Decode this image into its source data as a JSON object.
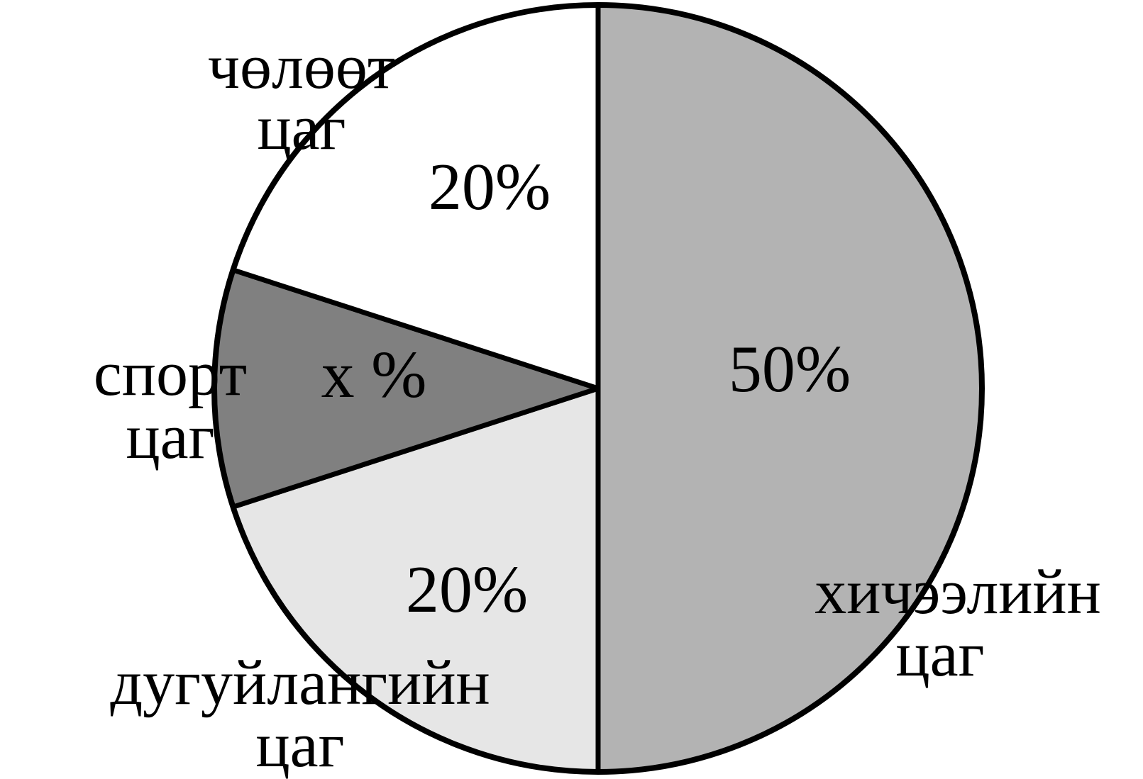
{
  "chart_data": {
    "type": "pie",
    "start": "12 o'clock",
    "direction": "clockwise",
    "slices": [
      {
        "value": 50,
        "label": "50%",
        "category": [
          "хичээлийн",
          "цаг"
        ],
        "color": "#b3b3b3"
      },
      {
        "value": 20,
        "label": "20%",
        "category": [
          "дугуйлангийн",
          "цаг"
        ],
        "color": "#e6e6e6"
      },
      {
        "value": 10,
        "label": "x %",
        "category": [
          "спорт",
          "цаг"
        ],
        "color": "#808080"
      },
      {
        "value": 20,
        "label": "20%",
        "category": [
          "чөлөөт",
          "цаг"
        ],
        "color": "#ffffff"
      }
    ]
  }
}
